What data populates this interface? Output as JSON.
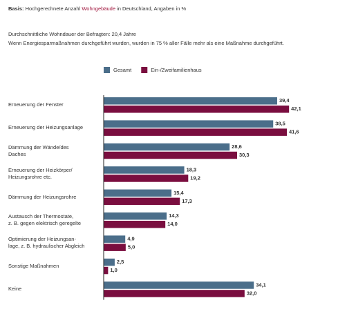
{
  "chart_data": {
    "type": "bar",
    "orientation": "horizontal",
    "basis_label": "Basis:",
    "basis_text_1": "Hochgerechnete Anzahl",
    "basis_highlight": "Wohngebäude",
    "basis_text_2": "in Deutschland, Angaben in %",
    "notes": [
      "Durchschnittliche Wohndauer der Befragten: 20,4 Jahre",
      "Wenn Energiesparmaßnahmen durchgeführt wurden, wurden in 75 % aller Fälle mehr als eine Maßnahme durchgeführt."
    ],
    "categories": [
      "Erneuerung der Fenster",
      "Erneuerung der Heizungsanlage",
      "Dämmung der Wände/des\nDaches",
      "Erneuerung der Heizkörper/\nHeizungsrohre etc.",
      "Dämmung der Heizungsrohre",
      "Austausch der Thermostate,\nz. B. gegen elektrisch geregelte",
      "Optimierung der Heizungsan-\nlage, z. B. hydraulischer Abgleich",
      "Sonstige Maßnahmen",
      "Keine"
    ],
    "series": [
      {
        "name": "Gesamt",
        "color": "#4b6e8a",
        "values": [
          39.4,
          38.5,
          28.6,
          18.3,
          15.4,
          14.3,
          4.9,
          2.5,
          34.1
        ],
        "value_labels": [
          "39,4",
          "38,5",
          "28,6",
          "18,3",
          "15,4",
          "14,3",
          "4,9",
          "2,5",
          "34,1"
        ]
      },
      {
        "name": "Ein-/Zweifamilienhaus",
        "color": "#7a0e3f",
        "values": [
          42.1,
          41.6,
          30.3,
          19.2,
          17.3,
          14.0,
          5.0,
          1.0,
          32.0
        ],
        "value_labels": [
          "42,1",
          "41,6",
          "30,3",
          "19,2",
          "17,3",
          "14,0",
          "5,0",
          "1,0",
          "32,0"
        ]
      }
    ],
    "xlim": [
      0,
      50
    ]
  }
}
